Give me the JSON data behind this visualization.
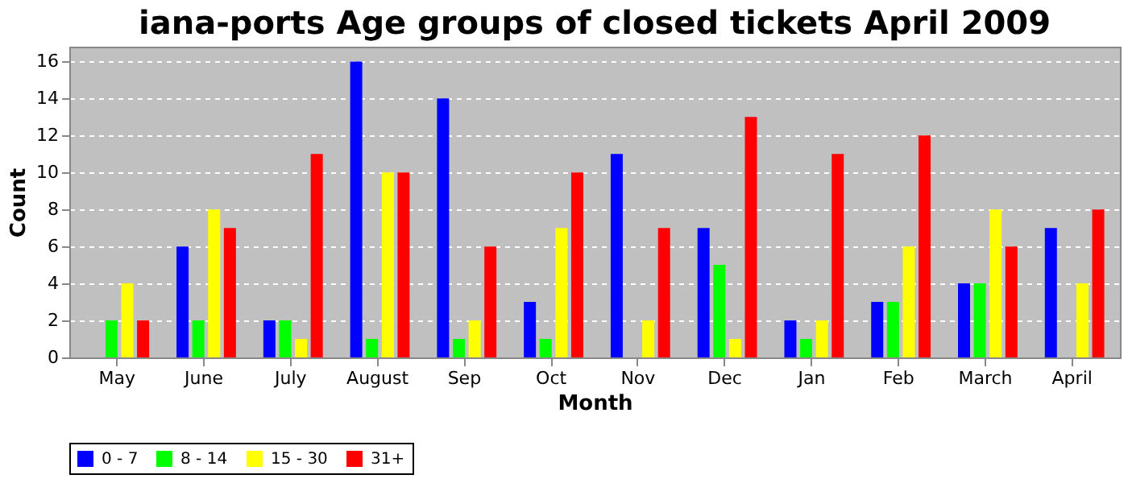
{
  "chart_data": {
    "type": "bar",
    "title": "iana-ports Age groups of closed tickets April 2009",
    "xlabel": "Month",
    "ylabel": "Count",
    "categories": [
      "May",
      "June",
      "July",
      "August",
      "Sep",
      "Oct",
      "Nov",
      "Dec",
      "Jan",
      "Feb",
      "March",
      "April"
    ],
    "series": [
      {
        "name": "0 - 7",
        "color": "#0000ff",
        "values": [
          0,
          6,
          2,
          16,
          14,
          3,
          11,
          7,
          2,
          3,
          4,
          7
        ]
      },
      {
        "name": "8 - 14",
        "color": "#00ff00",
        "values": [
          2,
          2,
          2,
          1,
          1,
          1,
          0,
          5,
          1,
          3,
          4,
          0
        ]
      },
      {
        "name": "15 - 30",
        "color": "#ffff00",
        "values": [
          4,
          8,
          1,
          10,
          2,
          7,
          2,
          1,
          2,
          6,
          8,
          4
        ]
      },
      {
        "name": "31+",
        "color": "#ff0000",
        "values": [
          2,
          7,
          11,
          10,
          6,
          10,
          7,
          13,
          11,
          12,
          6,
          8
        ]
      }
    ],
    "ylim": [
      0,
      16.8
    ],
    "yticks": [
      0,
      2,
      4,
      6,
      8,
      10,
      12,
      14,
      16
    ],
    "grid": "y",
    "legend": "bottom"
  }
}
